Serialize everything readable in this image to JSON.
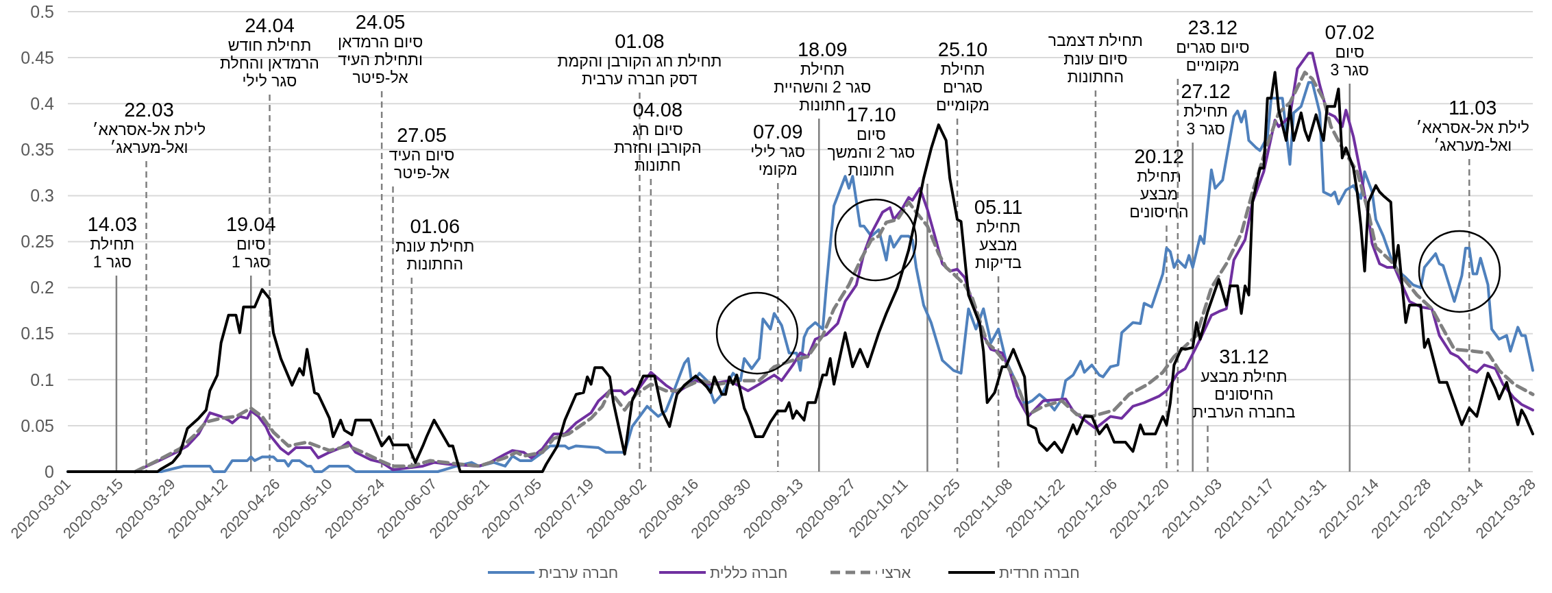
{
  "chart_data": {
    "type": "line",
    "xlim": [
      "2020-03-01",
      "2021-03-28"
    ],
    "xticks": [
      "2020-03-01",
      "2020-03-15",
      "2020-03-29",
      "2020-04-12",
      "2020-04-26",
      "2020-05-10",
      "2020-05-24",
      "2020-06-07",
      "2020-06-21",
      "2020-07-05",
      "2020-07-19",
      "2020-08-02",
      "2020-08-16",
      "2020-08-30",
      "2020-09-13",
      "2020-09-27",
      "2020-10-11",
      "2020-10-25",
      "2020-11-08",
      "2020-11-22",
      "2020-12-06",
      "2020-12-20",
      "2021-01-03",
      "2021-01-17",
      "2021-01-31",
      "2021-02-14",
      "2021-02-28",
      "2021-03-14",
      "2021-03-28"
    ],
    "ylim": [
      0,
      0.5
    ],
    "yticks": [
      0,
      0.05,
      0.1,
      0.15,
      0.2,
      0.25,
      0.3,
      0.35,
      0.4,
      0.45,
      0.5
    ],
    "grid": "y",
    "legend": "bottom",
    "series": [
      {
        "name": "חברה ערבית",
        "color": "#4f81bd",
        "x": [
          "2020-03-01",
          "2020-03-26",
          "2020-04-01",
          "2020-04-08",
          "2020-04-09",
          "2020-04-12",
          "2020-04-14",
          "2020-04-18",
          "2020-04-19",
          "2020-04-20",
          "2020-04-22",
          "2020-04-25",
          "2020-04-26",
          "2020-04-28",
          "2020-04-29",
          "2020-04-30",
          "2020-05-02",
          "2020-05-04",
          "2020-05-05",
          "2020-05-06",
          "2020-05-08",
          "2020-05-10",
          "2020-05-15",
          "2020-05-17",
          "2020-06-08",
          "2020-06-13",
          "2020-06-17",
          "2020-06-19",
          "2020-06-23",
          "2020-06-26",
          "2020-06-28",
          "2020-06-30",
          "2020-07-03",
          "2020-07-06",
          "2020-07-08",
          "2020-07-12",
          "2020-07-13",
          "2020-07-15",
          "2020-07-21",
          "2020-07-23",
          "2020-07-28",
          "2020-07-30",
          "2020-08-03",
          "2020-08-06",
          "2020-08-08",
          "2020-08-10",
          "2020-08-13",
          "2020-08-14",
          "2020-08-15",
          "2020-08-17",
          "2020-08-19",
          "2020-08-21",
          "2020-08-23",
          "2020-08-26",
          "2020-08-28",
          "2020-08-29",
          "2020-08-31",
          "2020-09-02",
          "2020-09-03",
          "2020-09-05",
          "2020-09-06",
          "2020-09-08",
          "2020-09-10",
          "2020-09-12",
          "2020-09-13",
          "2020-09-14",
          "2020-09-15",
          "2020-09-17",
          "2020-09-19",
          "2020-09-20",
          "2020-09-22",
          "2020-09-25",
          "2020-09-26",
          "2020-09-27",
          "2020-09-29",
          "2020-09-30",
          "2020-10-02",
          "2020-10-04",
          "2020-10-06",
          "2020-10-07",
          "2020-10-08",
          "2020-10-10",
          "2020-10-12",
          "2020-10-13",
          "2020-10-14",
          "2020-10-16",
          "2020-10-18",
          "2020-10-21",
          "2020-10-24",
          "2020-10-26",
          "2020-10-28",
          "2020-10-30",
          "2020-11-01",
          "2020-11-03",
          "2020-11-05",
          "2020-11-07",
          "2020-11-10",
          "2020-11-12",
          "2020-11-14",
          "2020-11-16",
          "2020-11-18",
          "2020-11-20",
          "2020-11-22",
          "2020-11-23",
          "2020-11-25",
          "2020-11-27",
          "2020-11-28",
          "2020-11-30",
          "2020-12-02",
          "2020-12-03",
          "2020-12-05",
          "2020-12-07",
          "2020-12-08",
          "2020-12-11",
          "2020-12-13",
          "2020-12-14",
          "2020-12-16",
          "2020-12-19",
          "2020-12-20",
          "2020-12-21",
          "2020-12-22",
          "2020-12-23",
          "2020-12-25",
          "2020-12-26",
          "2020-12-27",
          "2020-12-29",
          "2020-12-30",
          "2021-01-01",
          "2021-01-02",
          "2021-01-04",
          "2021-01-07",
          "2021-01-08",
          "2021-01-09",
          "2021-01-10",
          "2021-01-11",
          "2021-01-13",
          "2021-01-14",
          "2021-01-16",
          "2021-01-17",
          "2021-01-20",
          "2021-01-22",
          "2021-01-23",
          "2021-01-25",
          "2021-01-27",
          "2021-01-28",
          "2021-01-30",
          "2021-01-31",
          "2021-02-02",
          "2021-02-03",
          "2021-02-04",
          "2021-02-06",
          "2021-02-08",
          "2021-02-10",
          "2021-02-11",
          "2021-02-13",
          "2021-02-14",
          "2021-02-16",
          "2021-02-18",
          "2021-02-20",
          "2021-02-22",
          "2021-02-24",
          "2021-02-26",
          "2021-02-27",
          "2021-03-02",
          "2021-03-03",
          "2021-03-04",
          "2021-03-07",
          "2021-03-09",
          "2021-03-10",
          "2021-03-11",
          "2021-03-12",
          "2021-03-13",
          "2021-03-14",
          "2021-03-16",
          "2021-03-17",
          "2021-03-19",
          "2021-03-21",
          "2021-03-22",
          "2021-03-24",
          "2021-03-25",
          "2021-03-26",
          "2021-03-28"
        ],
        "values": [
          0,
          0,
          0.006,
          0.006,
          0,
          0,
          0.012,
          0.012,
          0.016,
          0.012,
          0.016,
          0.016,
          0.012,
          0.012,
          0.006,
          0.012,
          0.012,
          0.006,
          0.006,
          0,
          0,
          0.006,
          0.006,
          0,
          0,
          0.006,
          0.01,
          0.006,
          0.01,
          0.006,
          0.017,
          0.012,
          0.012,
          0.021,
          0.028,
          0.028,
          0.025,
          0.028,
          0.026,
          0.021,
          0.021,
          0.049,
          0.071,
          0.06,
          0.066,
          0.086,
          0.118,
          0.123,
          0.095,
          0.107,
          0.099,
          0.075,
          0.084,
          0.107,
          0.099,
          0.123,
          0.112,
          0.123,
          0.166,
          0.155,
          0.172,
          0.159,
          0.129,
          0.129,
          0.11,
          0.146,
          0.155,
          0.162,
          0.155,
          0.203,
          0.289,
          0.321,
          0.308,
          0.321,
          0.267,
          0.267,
          0.256,
          0.263,
          0.23,
          0.256,
          0.244,
          0.256,
          0.256,
          0.252,
          0.222,
          0.181,
          0.162,
          0.121,
          0.11,
          0.107,
          0.177,
          0.155,
          0.177,
          0.14,
          0.155,
          0.121,
          0.095,
          0.073,
          0.077,
          0.084,
          0.077,
          0.067,
          0.079,
          0.099,
          0.105,
          0.12,
          0.108,
          0.116,
          0.105,
          0.103,
          0.114,
          0.116,
          0.151,
          0.162,
          0.161,
          0.183,
          0.179,
          0.215,
          0.243,
          0.239,
          0.222,
          0.23,
          0.222,
          0.235,
          0.222,
          0.256,
          0.248,
          0.328,
          0.308,
          0.317,
          0.386,
          0.392,
          0.38,
          0.392,
          0.36,
          0.352,
          0.349,
          0.364,
          0.406,
          0.406,
          0.334,
          0.39,
          0.397,
          0.423,
          0.423,
          0.39,
          0.304,
          0.3,
          0.304,
          0.291,
          0.306,
          0.311,
          0.297,
          0.326,
          0.304,
          0.274,
          0.256,
          0.233,
          0.218,
          0.211,
          0.203,
          0.2,
          0.222,
          0.237,
          0.226,
          0.224,
          0.185,
          0.213,
          0.243,
          0.243,
          0.215,
          0.215,
          0.232,
          0.203,
          0.155,
          0.144,
          0.148,
          0.131,
          0.157,
          0.148,
          0.148,
          0.11
        ]
      },
      {
        "name": "חברה כללית",
        "color": "#7030a0",
        "x": [
          "2020-03-19",
          "2020-03-26",
          "2020-03-30",
          "2020-04-02",
          "2020-04-05",
          "2020-04-07",
          "2020-04-08",
          "2020-04-11",
          "2020-04-13",
          "2020-04-14",
          "2020-04-16",
          "2020-04-18",
          "2020-04-19",
          "2020-04-21",
          "2020-04-23",
          "2020-04-24",
          "2020-04-27",
          "2020-04-29",
          "2020-05-01",
          "2020-05-05",
          "2020-05-07",
          "2020-05-10",
          "2020-05-13",
          "2020-05-15",
          "2020-05-17",
          "2020-05-21",
          "2020-05-24",
          "2020-05-27",
          "2020-05-31",
          "2020-06-04",
          "2020-06-07",
          "2020-06-11",
          "2020-06-19",
          "2020-06-22",
          "2020-06-26",
          "2020-06-28",
          "2020-07-01",
          "2020-07-03",
          "2020-07-06",
          "2020-07-08",
          "2020-07-09",
          "2020-07-12",
          "2020-07-15",
          "2020-07-19",
          "2020-07-21",
          "2020-07-24",
          "2020-07-27",
          "2020-07-28",
          "2020-07-30",
          "2020-07-31",
          "2020-08-04",
          "2020-08-08",
          "2020-08-11",
          "2020-08-16",
          "2020-08-20",
          "2020-08-25",
          "2020-08-30",
          "2020-09-02",
          "2020-09-06",
          "2020-09-08",
          "2020-09-11",
          "2020-09-13",
          "2020-09-15",
          "2020-09-17",
          "2020-09-20",
          "2020-09-23",
          "2020-09-25",
          "2020-09-28",
          "2020-09-30",
          "2020-10-02",
          "2020-10-05",
          "2020-10-07",
          "2020-10-08",
          "2020-10-10",
          "2020-10-12",
          "2020-10-13",
          "2020-10-15",
          "2020-10-17",
          "2020-10-19",
          "2020-10-21",
          "2020-10-23",
          "2020-10-25",
          "2020-10-27",
          "2020-10-29",
          "2020-11-01",
          "2020-11-03",
          "2020-11-06",
          "2020-11-08",
          "2020-11-10",
          "2020-11-12",
          "2020-11-13",
          "2020-11-17",
          "2020-11-23",
          "2020-11-25",
          "2020-11-29",
          "2020-12-01",
          "2020-12-05",
          "2020-12-08",
          "2020-12-11",
          "2020-12-14",
          "2020-12-18",
          "2020-12-20",
          "2020-12-23",
          "2020-12-25",
          "2020-12-29",
          "2021-01-01",
          "2021-01-03",
          "2021-01-05",
          "2021-01-07",
          "2021-01-10",
          "2021-01-12",
          "2021-01-15",
          "2021-01-18",
          "2021-01-19",
          "2021-01-22",
          "2021-01-24",
          "2021-01-27",
          "2021-01-28",
          "2021-01-30",
          "2021-02-01",
          "2021-02-03",
          "2021-02-05",
          "2021-02-06",
          "2021-02-08",
          "2021-02-10",
          "2021-02-12",
          "2021-02-13",
          "2021-02-15",
          "2021-02-17",
          "2021-02-19",
          "2021-02-21",
          "2021-02-23",
          "2021-02-26",
          "2021-03-01",
          "2021-03-03",
          "2021-03-06",
          "2021-03-08",
          "2021-03-11",
          "2021-03-13",
          "2021-03-15",
          "2021-03-18",
          "2021-03-20",
          "2021-03-23",
          "2021-03-25",
          "2021-03-28"
        ],
        "values": [
          0,
          0.013,
          0.021,
          0.028,
          0.041,
          0.056,
          0.064,
          0.06,
          0.056,
          0.053,
          0.06,
          0.058,
          0.066,
          0.06,
          0.049,
          0.04,
          0.025,
          0.019,
          0.026,
          0.026,
          0.015,
          0.021,
          0.026,
          0.032,
          0.021,
          0.013,
          0.01,
          0.002,
          0.004,
          0.006,
          0.01,
          0.008,
          0.006,
          0.01,
          0.019,
          0.023,
          0.021,
          0.015,
          0.025,
          0.036,
          0.041,
          0.041,
          0.053,
          0.064,
          0.077,
          0.088,
          0.088,
          0.084,
          0.09,
          0.086,
          0.108,
          0.094,
          0.086,
          0.099,
          0.095,
          0.099,
          0.088,
          0.095,
          0.105,
          0.099,
          0.116,
          0.129,
          0.125,
          0.144,
          0.149,
          0.161,
          0.185,
          0.203,
          0.237,
          0.259,
          0.282,
          0.287,
          0.274,
          0.284,
          0.298,
          0.295,
          0.308,
          0.285,
          0.256,
          0.226,
          0.218,
          0.22,
          0.211,
          0.185,
          0.148,
          0.133,
          0.129,
          0.11,
          0.082,
          0.067,
          0.06,
          0.077,
          0.079,
          0.066,
          0.053,
          0.047,
          0.06,
          0.058,
          0.071,
          0.075,
          0.082,
          0.088,
          0.107,
          0.112,
          0.144,
          0.17,
          0.174,
          0.177,
          0.23,
          0.252,
          0.293,
          0.326,
          0.382,
          0.375,
          0.386,
          0.438,
          0.455,
          0.455,
          0.42,
          0.39,
          0.386,
          0.375,
          0.393,
          0.364,
          0.323,
          0.278,
          0.248,
          0.226,
          0.222,
          0.222,
          0.203,
          0.185,
          0.179,
          0.177,
          0.148,
          0.129,
          0.125,
          0.112,
          0.108,
          0.116,
          0.112,
          0.095,
          0.08,
          0.073,
          0.067
        ]
      },
      {
        "name": "ארצי",
        "color": "#808080",
        "line_style": "dashed",
        "x": [
          "2020-03-19",
          "2020-03-24",
          "2020-03-31",
          "2020-04-04",
          "2020-04-07",
          "2020-04-11",
          "2020-04-15",
          "2020-04-19",
          "2020-04-22",
          "2020-04-25",
          "2020-04-29",
          "2020-05-04",
          "2020-05-10",
          "2020-05-15",
          "2020-05-19",
          "2020-05-23",
          "2020-05-27",
          "2020-06-01",
          "2020-06-06",
          "2020-06-10",
          "2020-06-19",
          "2020-06-26",
          "2020-06-29",
          "2020-07-01",
          "2020-07-06",
          "2020-07-09",
          "2020-07-13",
          "2020-07-19",
          "2020-07-22",
          "2020-07-24",
          "2020-07-28",
          "2020-07-31",
          "2020-08-04",
          "2020-08-08",
          "2020-08-11",
          "2020-08-17",
          "2020-08-22",
          "2020-08-28",
          "2020-09-02",
          "2020-09-06",
          "2020-09-11",
          "2020-09-15",
          "2020-09-19",
          "2020-09-22",
          "2020-09-26",
          "2020-09-29",
          "2020-10-02",
          "2020-10-04",
          "2020-10-06",
          "2020-10-09",
          "2020-10-12",
          "2020-10-14",
          "2020-10-17",
          "2020-10-20",
          "2020-10-22",
          "2020-10-24",
          "2020-10-27",
          "2020-10-29",
          "2020-11-02",
          "2020-11-04",
          "2020-11-07",
          "2020-11-10",
          "2020-11-13",
          "2020-11-17",
          "2020-11-22",
          "2020-11-26",
          "2020-11-30",
          "2020-12-06",
          "2020-12-10",
          "2020-12-15",
          "2020-12-19",
          "2020-12-22",
          "2020-12-28",
          "2021-01-01",
          "2021-01-05",
          "2021-01-09",
          "2021-01-12",
          "2021-01-16",
          "2021-01-19",
          "2021-01-22",
          "2021-01-26",
          "2021-01-28",
          "2021-01-31",
          "2021-02-02",
          "2021-02-05",
          "2021-02-09",
          "2021-02-12",
          "2021-02-14",
          "2021-02-18",
          "2021-02-22",
          "2021-02-25",
          "2021-03-01",
          "2021-03-04",
          "2021-03-07",
          "2021-03-12",
          "2021-03-16",
          "2021-03-19",
          "2021-03-23",
          "2021-03-28"
        ],
        "values": [
          0,
          0.01,
          0.025,
          0.04,
          0.054,
          0.058,
          0.06,
          0.069,
          0.06,
          0.043,
          0.028,
          0.032,
          0.023,
          0.028,
          0.021,
          0.013,
          0.006,
          0.006,
          0.012,
          0.01,
          0.006,
          0.015,
          0.021,
          0.017,
          0.021,
          0.036,
          0.041,
          0.058,
          0.071,
          0.088,
          0.067,
          0.084,
          0.095,
          0.088,
          0.088,
          0.099,
          0.095,
          0.099,
          0.099,
          0.114,
          0.121,
          0.125,
          0.148,
          0.177,
          0.203,
          0.229,
          0.252,
          0.256,
          0.271,
          0.274,
          0.293,
          0.282,
          0.267,
          0.237,
          0.222,
          0.215,
          0.203,
          0.189,
          0.14,
          0.133,
          0.118,
          0.095,
          0.062,
          0.071,
          0.077,
          0.062,
          0.06,
          0.067,
          0.084,
          0.095,
          0.108,
          0.125,
          0.148,
          0.2,
          0.226,
          0.259,
          0.304,
          0.356,
          0.39,
          0.401,
          0.434,
          0.427,
          0.405,
          0.375,
          0.352,
          0.326,
          0.282,
          0.244,
          0.229,
          0.207,
          0.192,
          0.177,
          0.155,
          0.133,
          0.131,
          0.129,
          0.11,
          0.095,
          0.084
        ]
      },
      {
        "name": "חברה חרדית",
        "color": "#000000",
        "x": [
          "2020-03-01",
          "2020-03-25",
          "2020-03-26",
          "2020-03-29",
          "2020-03-31",
          "2020-04-02",
          "2020-04-05",
          "2020-04-07",
          "2020-04-08",
          "2020-04-10",
          "2020-04-11",
          "2020-04-13",
          "2020-04-15",
          "2020-04-16",
          "2020-04-17",
          "2020-04-20",
          "2020-04-22",
          "2020-04-24",
          "2020-04-25",
          "2020-04-27",
          "2020-04-30",
          "2020-05-02",
          "2020-05-03",
          "2020-05-04",
          "2020-05-06",
          "2020-05-07",
          "2020-05-10",
          "2020-05-11",
          "2020-05-13",
          "2020-05-14",
          "2020-05-16",
          "2020-05-17",
          "2020-05-21",
          "2020-05-22",
          "2020-05-24",
          "2020-05-26",
          "2020-05-27",
          "2020-05-31",
          "2020-06-02",
          "2020-06-04",
          "2020-06-05",
          "2020-06-07",
          "2020-06-11",
          "2020-06-12",
          "2020-06-14",
          "2020-07-06",
          "2020-07-07",
          "2020-07-10",
          "2020-07-12",
          "2020-07-15",
          "2020-07-17",
          "2020-07-18",
          "2020-07-19",
          "2020-07-20",
          "2020-07-22",
          "2020-07-24",
          "2020-07-25",
          "2020-07-28",
          "2020-07-30",
          "2020-08-02",
          "2020-08-05",
          "2020-08-07",
          "2020-08-09",
          "2020-08-11",
          "2020-08-13",
          "2020-08-16",
          "2020-08-19",
          "2020-08-20",
          "2020-08-21",
          "2020-08-23",
          "2020-08-24",
          "2020-08-25",
          "2020-08-26",
          "2020-08-27",
          "2020-08-29",
          "2020-08-30",
          "2020-09-01",
          "2020-09-03",
          "2020-09-05",
          "2020-09-07",
          "2020-09-09",
          "2020-09-10",
          "2020-09-11",
          "2020-09-12",
          "2020-09-14",
          "2020-09-15",
          "2020-09-17",
          "2020-09-19",
          "2020-09-20",
          "2020-09-21",
          "2020-09-22",
          "2020-09-25",
          "2020-09-26",
          "2020-09-27",
          "2020-09-29",
          "2020-10-01",
          "2020-10-04",
          "2020-10-06",
          "2020-10-09",
          "2020-10-12",
          "2020-10-14",
          "2020-10-16",
          "2020-10-18",
          "2020-10-20",
          "2020-10-22",
          "2020-10-23",
          "2020-10-25",
          "2020-10-26",
          "2020-10-28",
          "2020-10-31",
          "2020-11-01",
          "2020-11-02",
          "2020-11-04",
          "2020-11-06",
          "2020-11-07",
          "2020-11-09",
          "2020-11-12",
          "2020-11-13",
          "2020-11-15",
          "2020-11-16",
          "2020-11-18",
          "2020-11-20",
          "2020-11-22",
          "2020-11-25",
          "2020-11-26",
          "2020-11-28",
          "2020-11-30",
          "2020-12-02",
          "2020-12-04",
          "2020-12-06",
          "2020-12-09",
          "2020-12-11",
          "2020-12-13",
          "2020-12-14",
          "2020-12-17",
          "2020-12-19",
          "2020-12-20",
          "2020-12-21",
          "2020-12-22",
          "2020-12-24",
          "2020-12-25",
          "2020-12-27",
          "2020-12-28",
          "2020-12-29",
          "2020-12-31",
          "2021-01-03",
          "2021-01-05",
          "2021-01-06",
          "2021-01-08",
          "2021-01-09",
          "2021-01-10",
          "2021-01-11",
          "2021-01-12",
          "2021-01-14",
          "2021-01-15",
          "2021-01-16",
          "2021-01-17",
          "2021-01-18",
          "2021-01-19",
          "2021-01-21",
          "2021-01-22",
          "2021-01-23",
          "2021-01-25",
          "2021-01-26",
          "2021-01-27",
          "2021-01-29",
          "2021-01-30",
          "2021-01-31",
          "2021-02-01",
          "2021-02-03",
          "2021-02-04",
          "2021-02-05",
          "2021-02-06",
          "2021-02-08",
          "2021-02-09",
          "2021-02-10",
          "2021-02-11",
          "2021-02-12",
          "2021-02-14",
          "2021-02-15",
          "2021-02-16",
          "2021-02-18",
          "2021-02-19",
          "2021-02-20",
          "2021-02-22",
          "2021-02-23",
          "2021-02-26",
          "2021-02-27",
          "2021-02-28",
          "2021-03-03",
          "2021-03-05",
          "2021-03-09",
          "2021-03-11",
          "2021-03-13",
          "2021-03-16",
          "2021-03-18",
          "2021-03-19",
          "2021-03-21",
          "2021-03-24",
          "2021-03-25",
          "2021-03-26",
          "2021-03-28"
        ],
        "values": [
          0,
          0,
          0.003,
          0.01,
          0.02,
          0.047,
          0.058,
          0.067,
          0.088,
          0.105,
          0.14,
          0.17,
          0.17,
          0.151,
          0.179,
          0.179,
          0.198,
          0.188,
          0.151,
          0.123,
          0.094,
          0.112,
          0.105,
          0.133,
          0.086,
          0.084,
          0.058,
          0.038,
          0.056,
          0.045,
          0.04,
          0.056,
          0.056,
          0.047,
          0.028,
          0.038,
          0.029,
          0.029,
          0.01,
          0.028,
          0.038,
          0.056,
          0.028,
          0.028,
          0,
          0,
          0.008,
          0.028,
          0.056,
          0.084,
          0.086,
          0.103,
          0.095,
          0.113,
          0.113,
          0.103,
          0.075,
          0.019,
          0.077,
          0.104,
          0.104,
          0.066,
          0.049,
          0.084,
          0.094,
          0.104,
          0.092,
          0.086,
          0.103,
          0.084,
          0.084,
          0.103,
          0.095,
          0.105,
          0.069,
          0.06,
          0.038,
          0.038,
          0.054,
          0.066,
          0.066,
          0.075,
          0.058,
          0.066,
          0.056,
          0.075,
          0.075,
          0.105,
          0.105,
          0.123,
          0.095,
          0.151,
          0.133,
          0.114,
          0.133,
          0.114,
          0.151,
          0.172,
          0.2,
          0.241,
          0.278,
          0.319,
          0.351,
          0.377,
          0.36,
          0.319,
          0.274,
          0.272,
          0.192,
          0.161,
          0.131,
          0.075,
          0.086,
          0.114,
          0.114,
          0.133,
          0.103,
          0.051,
          0.047,
          0.032,
          0.023,
          0.032,
          0.021,
          0.051,
          0.041,
          0.06,
          0.06,
          0.041,
          0.051,
          0.032,
          0.032,
          0.022,
          0.051,
          0.041,
          0.041,
          0.06,
          0.051,
          0.075,
          0.116,
          0.134,
          0.133,
          0.135,
          0.162,
          0.144,
          0.174,
          0.209,
          0.181,
          0.202,
          0.202,
          0.172,
          0.202,
          0.192,
          0.293,
          0.33,
          0.33,
          0.406,
          0.406,
          0.434,
          0.393,
          0.36,
          0.397,
          0.36,
          0.39,
          0.371,
          0.36,
          0.388,
          0.373,
          0.36,
          0.397,
          0.397,
          0.416,
          0.341,
          0.352,
          0.33,
          0.304,
          0.267,
          0.218,
          0.293,
          0.311,
          0.304,
          0.3,
          0.293,
          0.222,
          0.246,
          0.162,
          0.181,
          0.181,
          0.135,
          0.144,
          0.097,
          0.097,
          0.051,
          0.069,
          0.06,
          0.107,
          0.09,
          0.079,
          0.097,
          0.051,
          0.067,
          0.06,
          0.041
        ]
      }
    ],
    "ref_lines": [
      {
        "axis": "x",
        "value": "2020-03-14",
        "label": "14.03\nתחילת\nסגר 1",
        "line_style": "solid",
        "color": "#7f7f7f"
      },
      {
        "axis": "x",
        "value": "2020-03-22",
        "label": "22.03\nלילת אל-אסראא׳\nואל-מעראג׳",
        "line_style": "dashed",
        "color": "#7f7f7f"
      },
      {
        "axis": "x",
        "value": "2020-04-19",
        "label": "19.04\nסיום\nסגר 1",
        "line_style": "solid",
        "color": "#7f7f7f"
      },
      {
        "axis": "x",
        "value": "2020-04-24",
        "label": "24.04\nתחילת חודש\nהרמדאן והחלת\nסגר לילי",
        "line_style": "dashed",
        "color": "#7f7f7f"
      },
      {
        "axis": "x",
        "value": "2020-05-24",
        "label": "24.05\nסיום הרמדאן\nותחילת העיד\nאל-פיטר",
        "line_style": "dashed",
        "color": "#7f7f7f"
      },
      {
        "axis": "x",
        "value": "2020-05-27",
        "label": "27.05\nסיום העיד\nאל-פיטר",
        "line_style": "dashed",
        "color": "#7f7f7f"
      },
      {
        "axis": "x",
        "value": "2020-06-01",
        "label": "01.06\nתחילת עונת\nהחתונות",
        "line_style": "dashed",
        "color": "#7f7f7f"
      },
      {
        "axis": "x",
        "value": "2020-08-01",
        "label": "01.08\nתחילת חג הקורבן והקמת\nדסק חברה ערבית",
        "line_style": "dashed",
        "color": "#7f7f7f"
      },
      {
        "axis": "x",
        "value": "2020-08-04",
        "label": "04.08\nסיום חג\nהקורבן וחזרת\nחתונות",
        "line_style": "dashed",
        "color": "#7f7f7f"
      },
      {
        "axis": "x",
        "value": "2020-09-07",
        "label": "07.09\nסגר לילי\nמקומי",
        "line_style": "dashed",
        "color": "#7f7f7f"
      },
      {
        "axis": "x",
        "value": "2020-09-18",
        "label": "18.09\nתחילת\nסגר 2 והשהיית\nחתונות",
        "line_style": "solid",
        "color": "#7f7f7f"
      },
      {
        "axis": "x",
        "value": "2020-10-17",
        "label": "17.10\nסיום\nסגר 2 והמשך\nחתונות",
        "line_style": "solid",
        "color": "#7f7f7f"
      },
      {
        "axis": "x",
        "value": "2020-10-25",
        "label": "25.10\nתחילת\nסגרים\nמקומיים",
        "line_style": "dashed",
        "color": "#7f7f7f"
      },
      {
        "axis": "x",
        "value": "2020-11-05",
        "label": "05.11\nתחילת\nמבצע\nבדיקות",
        "line_style": "dashed",
        "color": "#7f7f7f"
      },
      {
        "axis": "x",
        "value": "2020-12-01",
        "label": "תחילת דצמבר\nסיום עונת\nהחתונות",
        "line_style": "dashed",
        "color": "#7f7f7f"
      },
      {
        "axis": "x",
        "value": "2020-12-20",
        "label": "20.12\nתחילת\nמבצע\nהחיסונים",
        "line_style": "dashed",
        "color": "#7f7f7f"
      },
      {
        "axis": "x",
        "value": "2020-12-23",
        "label": "23.12\nסיום סגרים\nמקומיים",
        "line_style": "dashed",
        "color": "#7f7f7f"
      },
      {
        "axis": "x",
        "value": "2020-12-27",
        "label": "27.12\nתחילת\nסגר 3",
        "line_style": "solid",
        "color": "#7f7f7f"
      },
      {
        "axis": "x",
        "value": "2020-12-31",
        "label": "31.12\nתחילת מבצע\nהחיסונים\nבחברה הערבית",
        "line_style": "dashed",
        "color": "#7f7f7f"
      },
      {
        "axis": "x",
        "value": "2021-02-07",
        "label": "07.02\nסיום\nסגר 3",
        "line_style": "solid",
        "color": "#7f7f7f"
      },
      {
        "axis": "x",
        "value": "2021-03-11",
        "label": "11.03\nלילת אל-אסראא׳\nואל-מעראג׳",
        "line_style": "dashed",
        "color": "#7f7f7f"
      }
    ]
  }
}
